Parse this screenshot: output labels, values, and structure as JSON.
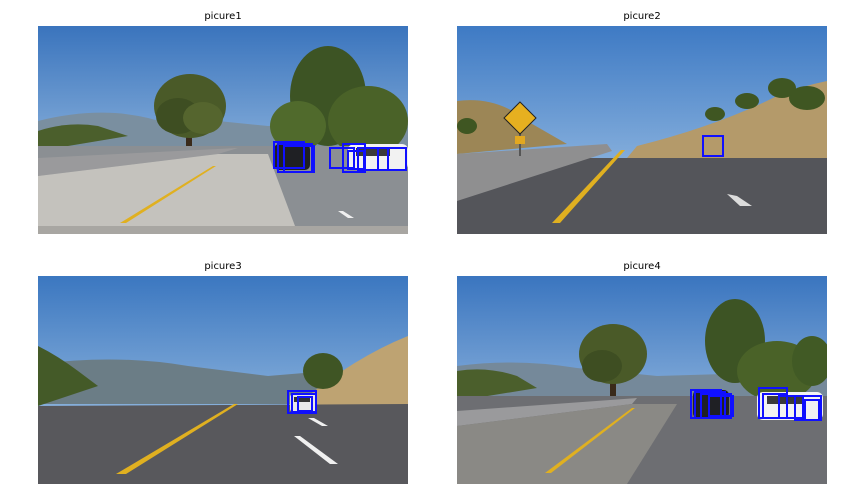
{
  "figure": {
    "panels": [
      {
        "title": "picure1"
      },
      {
        "title": "picure2"
      },
      {
        "title": "picure3"
      },
      {
        "title": "picure4"
      }
    ]
  },
  "colors": {
    "detection_box": "#1010ff",
    "lane_yellow": "#e0b020",
    "road": "#5a5a5c",
    "sky_top": "#3d78c0",
    "sky_bottom": "#aecdeb",
    "vegetation": "#46582b",
    "hill": "#b89e70"
  }
}
